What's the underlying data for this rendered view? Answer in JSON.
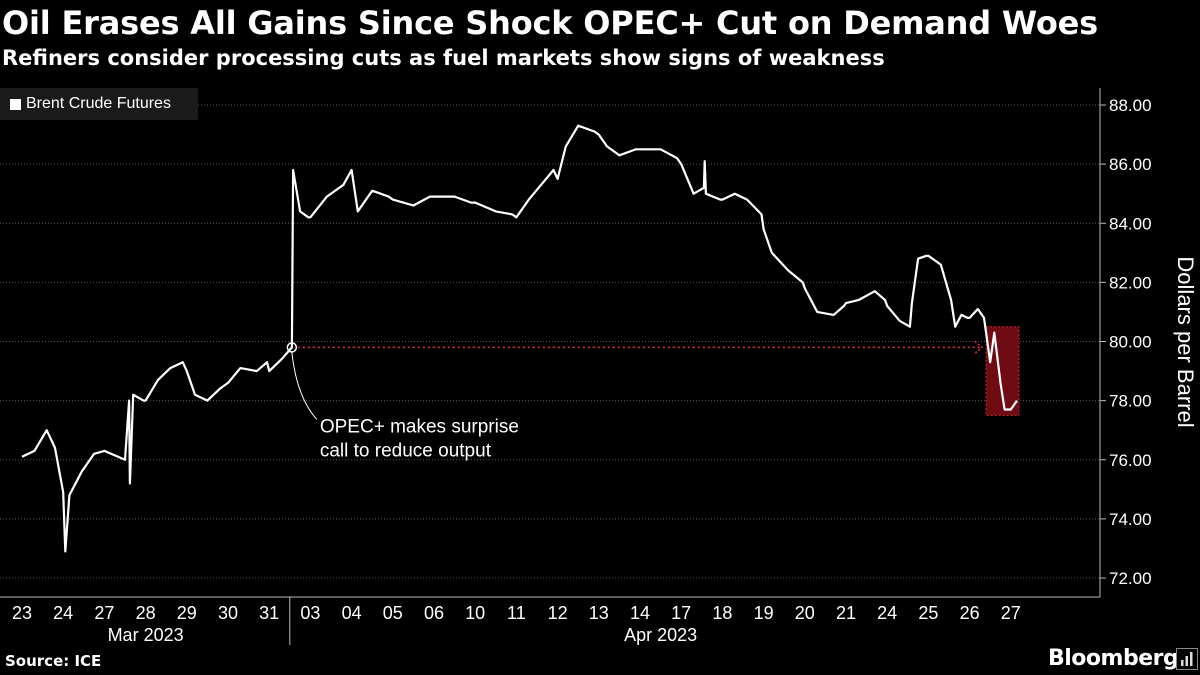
{
  "header": {
    "title": "Oil Erases All Gains Since Shock OPEC+ Cut on Demand Woes",
    "subtitle": "Refiners consider processing cuts as fuel markets show signs of weakness"
  },
  "footer": {
    "source": "Source: ICE",
    "brand": "Bloomberg",
    "brand_icon": "bloomberg-terminal-icon"
  },
  "colors": {
    "background": "#000000",
    "line": "#ffffff",
    "grid": "#555555",
    "annotation": "#e0303a",
    "highlight_fill": "#7a0d16",
    "highlight_stroke": "#d4303a"
  },
  "chart_data": {
    "type": "line",
    "title": "Oil Erases All Gains Since Shock OPEC+ Cut on Demand Woes",
    "subtitle": "Refiners consider processing cuts as fuel markets show signs of weakness",
    "ylabel": "Dollars per Barrel",
    "xlabel": "",
    "ylim": [
      71.5,
      88.5
    ],
    "y_ticks": [
      "88.00",
      "86.00",
      "84.00",
      "82.00",
      "80.00",
      "78.00",
      "76.00",
      "74.00",
      "72.00"
    ],
    "y_tick_values": [
      88,
      86,
      84,
      82,
      80,
      78,
      76,
      74,
      72
    ],
    "x_ticks": [
      "23",
      "24",
      "27",
      "28",
      "29",
      "30",
      "31",
      "03",
      "04",
      "05",
      "06",
      "10",
      "11",
      "12",
      "13",
      "14",
      "17",
      "18",
      "19",
      "20",
      "21",
      "24",
      "25",
      "26",
      "27"
    ],
    "x_groups": [
      {
        "label": "Mar 2023",
        "from": 0,
        "to": 6
      },
      {
        "label": "Apr 2023",
        "from": 7,
        "to": 24
      }
    ],
    "grid": "horizontal",
    "legend": {
      "position": "top-left",
      "entries": [
        "Brent Crude Futures"
      ]
    },
    "series": [
      {
        "name": "Brent Crude Futures",
        "points": [
          [
            0.0,
            76.1
          ],
          [
            0.3,
            76.3
          ],
          [
            0.6,
            77.0
          ],
          [
            0.8,
            76.4
          ],
          [
            1.0,
            74.9
          ],
          [
            1.05,
            72.9
          ],
          [
            1.15,
            74.8
          ],
          [
            1.45,
            75.6
          ],
          [
            1.75,
            76.2
          ],
          [
            2.0,
            76.3
          ],
          [
            2.5,
            76.0
          ],
          [
            2.6,
            78.0
          ],
          [
            2.62,
            75.2
          ],
          [
            2.7,
            78.2
          ],
          [
            2.95,
            78.0
          ],
          [
            3.0,
            78.0
          ],
          [
            3.3,
            78.7
          ],
          [
            3.6,
            79.1
          ],
          [
            3.9,
            79.3
          ],
          [
            4.0,
            79.0
          ],
          [
            4.2,
            78.2
          ],
          [
            4.5,
            78.0
          ],
          [
            4.8,
            78.4
          ],
          [
            5.0,
            78.6
          ],
          [
            5.3,
            79.1
          ],
          [
            5.7,
            79.0
          ],
          [
            5.95,
            79.3
          ],
          [
            6.0,
            79.0
          ],
          [
            6.3,
            79.4
          ],
          [
            6.55,
            79.8
          ],
          [
            6.58,
            85.8
          ],
          [
            6.75,
            84.4
          ],
          [
            6.95,
            84.2
          ],
          [
            7.0,
            84.2
          ],
          [
            7.4,
            84.9
          ],
          [
            7.8,
            85.3
          ],
          [
            8.0,
            85.8
          ],
          [
            8.15,
            84.4
          ],
          [
            8.5,
            85.1
          ],
          [
            8.9,
            84.9
          ],
          [
            9.0,
            84.8
          ],
          [
            9.5,
            84.6
          ],
          [
            9.9,
            84.9
          ],
          [
            10.0,
            84.9
          ],
          [
            10.5,
            84.9
          ],
          [
            10.9,
            84.7
          ],
          [
            11.0,
            84.7
          ],
          [
            11.5,
            84.4
          ],
          [
            11.9,
            84.3
          ],
          [
            12.0,
            84.2
          ],
          [
            12.3,
            84.8
          ],
          [
            12.6,
            85.3
          ],
          [
            12.9,
            85.8
          ],
          [
            13.0,
            85.5
          ],
          [
            13.2,
            86.6
          ],
          [
            13.5,
            87.3
          ],
          [
            13.9,
            87.1
          ],
          [
            14.0,
            87.0
          ],
          [
            14.2,
            86.6
          ],
          [
            14.5,
            86.3
          ],
          [
            14.9,
            86.5
          ],
          [
            15.0,
            86.5
          ],
          [
            15.5,
            86.5
          ],
          [
            15.9,
            86.2
          ],
          [
            16.0,
            86.0
          ],
          [
            16.3,
            85.0
          ],
          [
            16.55,
            85.2
          ],
          [
            16.57,
            86.1
          ],
          [
            16.6,
            85.0
          ],
          [
            16.95,
            84.8
          ],
          [
            17.0,
            84.8
          ],
          [
            17.3,
            85.0
          ],
          [
            17.6,
            84.8
          ],
          [
            17.95,
            84.3
          ],
          [
            18.0,
            83.8
          ],
          [
            18.2,
            83.0
          ],
          [
            18.6,
            82.4
          ],
          [
            18.95,
            82.0
          ],
          [
            19.0,
            81.8
          ],
          [
            19.3,
            81.0
          ],
          [
            19.7,
            80.9
          ],
          [
            19.95,
            81.2
          ],
          [
            20.0,
            81.3
          ],
          [
            20.3,
            81.4
          ],
          [
            20.7,
            81.7
          ],
          [
            20.95,
            81.4
          ],
          [
            21.0,
            81.2
          ],
          [
            21.3,
            80.7
          ],
          [
            21.55,
            80.5
          ],
          [
            21.6,
            81.3
          ],
          [
            21.75,
            82.8
          ],
          [
            21.95,
            82.9
          ],
          [
            22.0,
            82.9
          ],
          [
            22.3,
            82.6
          ],
          [
            22.55,
            81.4
          ],
          [
            22.65,
            80.5
          ],
          [
            22.8,
            80.9
          ],
          [
            22.95,
            80.8
          ],
          [
            23.0,
            80.8
          ],
          [
            23.2,
            81.1
          ],
          [
            23.35,
            80.8
          ],
          [
            23.5,
            79.3
          ],
          [
            23.6,
            80.3
          ],
          [
            23.75,
            78.6
          ],
          [
            23.85,
            77.7
          ],
          [
            24.0,
            77.7
          ],
          [
            24.15,
            78.0
          ]
        ]
      }
    ],
    "annotations": [
      {
        "text_lines": [
          "OPEC+ makes surprise",
          "call to reduce output"
        ],
        "x": 6.55,
        "y": 79.8
      },
      {
        "type": "dotted-arrow",
        "from_x": 6.55,
        "to_x": 23.3,
        "y": 79.8
      },
      {
        "type": "highlight-box",
        "x_from": 23.4,
        "x_to": 24.2,
        "y_from": 77.5,
        "y_to": 80.5
      }
    ]
  }
}
